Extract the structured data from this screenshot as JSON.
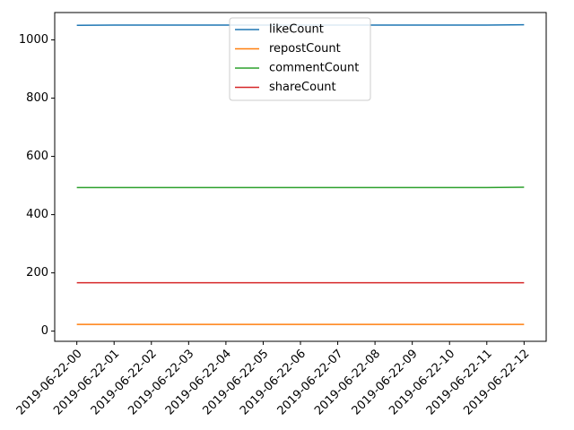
{
  "chart_data": {
    "type": "line",
    "title": "",
    "xlabel": "",
    "ylabel": "",
    "x": [
      "2019-06-22-00",
      "2019-06-22-01",
      "2019-06-22-02",
      "2019-06-22-03",
      "2019-06-22-04",
      "2019-06-22-05",
      "2019-06-22-06",
      "2019-06-22-07",
      "2019-06-22-08",
      "2019-06-22-09",
      "2019-06-22-10",
      "2019-06-22-11",
      "2019-06-22-12"
    ],
    "ylim": [
      -35,
      1094
    ],
    "yticks": [
      0,
      200,
      400,
      600,
      800,
      1000
    ],
    "grid": false,
    "legend_position": "top-center",
    "series": [
      {
        "name": "likeCount",
        "color": "#1f77b4",
        "values": [
          1050,
          1051,
          1051,
          1051,
          1051,
          1051,
          1051,
          1051,
          1051,
          1051,
          1051,
          1051,
          1052
        ]
      },
      {
        "name": "repostCount",
        "color": "#ff7f0e",
        "values": [
          23,
          23,
          23,
          23,
          23,
          23,
          23,
          23,
          23,
          23,
          23,
          23,
          23
        ]
      },
      {
        "name": "commentCount",
        "color": "#2ca02c",
        "values": [
          493,
          493,
          493,
          493,
          493,
          493,
          493,
          493,
          493,
          493,
          493,
          493,
          494
        ]
      },
      {
        "name": "shareCount",
        "color": "#d62728",
        "values": [
          166,
          166,
          166,
          166,
          166,
          166,
          166,
          166,
          166,
          166,
          166,
          166,
          166
        ]
      }
    ]
  }
}
